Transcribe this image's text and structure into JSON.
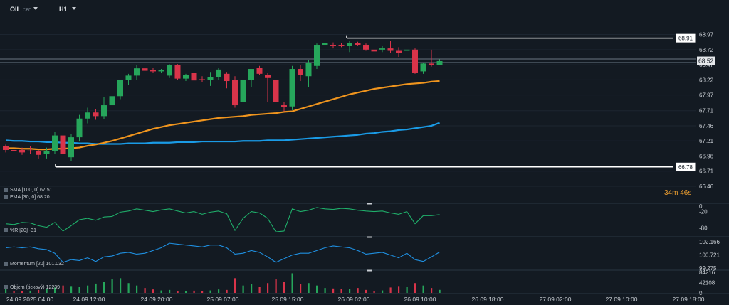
{
  "header": {
    "symbol": "OIL",
    "symbol_tag": "CFD",
    "timeframe": "H1"
  },
  "timer": {
    "minutes": "34",
    "m": "m",
    "seconds": "46",
    "s": "s"
  },
  "legends": {
    "sma": "SMA [100, 0] 67.51",
    "ema": "EMA [30, 0] 68.20",
    "wr": "%R [20] -31",
    "momentum": "Momentum [20] 101.032",
    "volume": "Objem (tickový) 12239"
  },
  "colors": {
    "background": "#131a22",
    "bull": "#26a65b",
    "bear": "#d9344a",
    "sma": "#1a9be6",
    "ema": "#f0951e",
    "line_white": "#ffffff",
    "indicator_green": "#1fae6a",
    "indicator_blue": "#1f8fe0"
  },
  "chart_data": [
    {
      "type": "candlestick",
      "title": "",
      "ylim": [
        66.46,
        69.1
      ],
      "y_ticks": [
        "68.97",
        "68.72",
        "68.47",
        "68.22",
        "67.97",
        "67.71",
        "67.46",
        "67.21",
        "66.96",
        "66.71",
        "66.46"
      ],
      "x_ticks": [
        "24.09.2025 04:00",
        "24.09 12:00",
        "24.09 20:00",
        "25.09 07:00",
        "25.09 15:00",
        "26.09 02:00",
        "26.09 10:00",
        "26.09 18:00",
        "27.09 02:00",
        "27.09 10:00",
        "27.09 18:00"
      ],
      "current_price_label": "68.52",
      "current_price": 68.535,
      "bid_line": 68.565,
      "horizontal_lines": [
        {
          "label": "68.91",
          "value": 68.91
        },
        {
          "label": "66.78",
          "value": 66.78
        }
      ],
      "candles": [
        {
          "o": 67.12,
          "h": 67.15,
          "l": 67.02,
          "c": 67.06
        },
        {
          "o": 67.06,
          "h": 67.1,
          "l": 67.0,
          "c": 67.04
        },
        {
          "o": 67.06,
          "h": 67.1,
          "l": 66.98,
          "c": 67.02
        },
        {
          "o": 67.05,
          "h": 67.12,
          "l": 67.0,
          "c": 67.04
        },
        {
          "o": 67.04,
          "h": 67.06,
          "l": 66.92,
          "c": 66.98
        },
        {
          "o": 66.99,
          "h": 67.1,
          "l": 66.92,
          "c": 67.04
        },
        {
          "o": 67.04,
          "h": 67.36,
          "l": 67.0,
          "c": 67.3
        },
        {
          "o": 67.3,
          "h": 67.34,
          "l": 66.8,
          "c": 67.0
        },
        {
          "o": 66.94,
          "h": 67.32,
          "l": 66.88,
          "c": 67.27
        },
        {
          "o": 67.27,
          "h": 67.64,
          "l": 67.2,
          "c": 67.58
        },
        {
          "o": 67.58,
          "h": 67.76,
          "l": 67.5,
          "c": 67.68
        },
        {
          "o": 67.68,
          "h": 67.74,
          "l": 67.56,
          "c": 67.62
        },
        {
          "o": 67.62,
          "h": 67.94,
          "l": 67.57,
          "c": 67.8
        },
        {
          "o": 67.8,
          "h": 67.95,
          "l": 67.5,
          "c": 67.95
        },
        {
          "o": 67.95,
          "h": 68.22,
          "l": 67.9,
          "c": 68.22
        },
        {
          "o": 68.22,
          "h": 68.32,
          "l": 68.14,
          "c": 68.29
        },
        {
          "o": 68.29,
          "h": 68.47,
          "l": 68.22,
          "c": 68.41
        },
        {
          "o": 68.41,
          "h": 68.5,
          "l": 68.35,
          "c": 68.37
        },
        {
          "o": 68.38,
          "h": 68.42,
          "l": 68.34,
          "c": 68.36
        },
        {
          "o": 68.36,
          "h": 68.4,
          "l": 68.33,
          "c": 68.38
        },
        {
          "o": 68.29,
          "h": 68.48,
          "l": 68.25,
          "c": 68.46
        },
        {
          "o": 68.46,
          "h": 68.48,
          "l": 68.22,
          "c": 68.24
        },
        {
          "o": 68.24,
          "h": 68.32,
          "l": 68.2,
          "c": 68.3
        },
        {
          "o": 68.33,
          "h": 68.35,
          "l": 68.2,
          "c": 68.21
        },
        {
          "o": 68.23,
          "h": 68.28,
          "l": 68.18,
          "c": 68.22
        },
        {
          "o": 68.22,
          "h": 68.35,
          "l": 68.12,
          "c": 68.26
        },
        {
          "o": 68.26,
          "h": 68.42,
          "l": 68.22,
          "c": 68.39
        },
        {
          "o": 68.32,
          "h": 68.35,
          "l": 68.08,
          "c": 68.2
        },
        {
          "o": 68.22,
          "h": 68.28,
          "l": 67.76,
          "c": 67.8
        },
        {
          "o": 67.85,
          "h": 68.25,
          "l": 67.8,
          "c": 68.22
        },
        {
          "o": 68.22,
          "h": 68.38,
          "l": 68.1,
          "c": 68.4
        },
        {
          "o": 68.42,
          "h": 68.45,
          "l": 68.3,
          "c": 68.32
        },
        {
          "o": 68.3,
          "h": 68.34,
          "l": 67.85,
          "c": 68.25
        },
        {
          "o": 68.22,
          "h": 68.28,
          "l": 67.78,
          "c": 67.85
        },
        {
          "o": 67.8,
          "h": 67.85,
          "l": 67.7,
          "c": 67.77
        },
        {
          "o": 67.78,
          "h": 68.45,
          "l": 67.72,
          "c": 68.4
        },
        {
          "o": 68.4,
          "h": 68.46,
          "l": 68.2,
          "c": 68.3
        },
        {
          "o": 68.28,
          "h": 68.55,
          "l": 68.1,
          "c": 68.5
        },
        {
          "o": 68.45,
          "h": 68.82,
          "l": 68.4,
          "c": 68.8
        },
        {
          "o": 68.8,
          "h": 68.84,
          "l": 68.72,
          "c": 68.83
        },
        {
          "o": 68.8,
          "h": 68.84,
          "l": 68.74,
          "c": 68.78
        },
        {
          "o": 68.8,
          "h": 68.83,
          "l": 68.76,
          "c": 68.78
        },
        {
          "o": 68.78,
          "h": 68.86,
          "l": 68.68,
          "c": 68.83
        },
        {
          "o": 68.83,
          "h": 68.85,
          "l": 68.79,
          "c": 68.8
        },
        {
          "o": 68.8,
          "h": 68.82,
          "l": 68.7,
          "c": 68.72
        },
        {
          "o": 68.72,
          "h": 68.76,
          "l": 68.66,
          "c": 68.69
        },
        {
          "o": 68.72,
          "h": 68.78,
          "l": 68.68,
          "c": 68.74
        },
        {
          "o": 68.74,
          "h": 68.86,
          "l": 68.66,
          "c": 68.7
        },
        {
          "o": 68.7,
          "h": 68.76,
          "l": 68.6,
          "c": 68.66
        },
        {
          "o": 68.7,
          "h": 68.75,
          "l": 68.62,
          "c": 68.72
        },
        {
          "o": 68.72,
          "h": 68.74,
          "l": 68.32,
          "c": 68.33
        },
        {
          "o": 68.36,
          "h": 68.5,
          "l": 68.32,
          "c": 68.49
        },
        {
          "o": 68.49,
          "h": 68.72,
          "l": 68.44,
          "c": 68.47
        },
        {
          "o": 68.47,
          "h": 68.56,
          "l": 68.46,
          "c": 68.53
        }
      ],
      "ema": [
        67.09,
        67.09,
        67.08,
        67.08,
        67.07,
        67.07,
        67.08,
        67.08,
        67.09,
        67.1,
        67.13,
        67.15,
        67.18,
        67.21,
        67.25,
        67.29,
        67.33,
        67.37,
        67.41,
        67.44,
        67.47,
        67.49,
        67.51,
        67.53,
        67.55,
        67.57,
        67.59,
        67.6,
        67.61,
        67.62,
        67.64,
        67.65,
        67.66,
        67.67,
        67.69,
        67.7,
        67.74,
        67.78,
        67.82,
        67.86,
        67.9,
        67.94,
        67.98,
        68.01,
        68.04,
        68.07,
        68.09,
        68.11,
        68.13,
        68.15,
        68.16,
        68.17,
        68.19,
        68.2
      ],
      "sma": [
        67.22,
        67.21,
        67.21,
        67.2,
        67.2,
        67.19,
        67.19,
        67.18,
        67.18,
        67.17,
        67.17,
        67.16,
        67.16,
        67.16,
        67.16,
        67.17,
        67.17,
        67.17,
        67.18,
        67.18,
        67.18,
        67.19,
        67.19,
        67.19,
        67.2,
        67.2,
        67.2,
        67.2,
        67.2,
        67.21,
        67.21,
        67.21,
        67.22,
        67.22,
        67.22,
        67.23,
        67.24,
        67.25,
        67.26,
        67.27,
        67.28,
        67.29,
        67.3,
        67.31,
        67.33,
        67.34,
        67.36,
        67.37,
        67.39,
        67.4,
        67.42,
        67.44,
        67.46,
        67.51
      ]
    },
    {
      "type": "line",
      "name": "%R [20]",
      "ylim": [
        -100,
        0
      ],
      "y_ticks": [
        "0",
        "-20",
        "-80"
      ],
      "values": [
        -65,
        -68,
        -60,
        -62,
        -72,
        -78,
        -60,
        -92,
        -72,
        -50,
        -45,
        -52,
        -40,
        -38,
        -22,
        -18,
        -10,
        -15,
        -20,
        -14,
        -10,
        -18,
        -25,
        -20,
        -30,
        -22,
        -18,
        -28,
        -90,
        -45,
        -20,
        -25,
        -45,
        -95,
        -92,
        -10,
        -20,
        -15,
        -5,
        -10,
        -12,
        -8,
        -10,
        -15,
        -18,
        -20,
        -18,
        -25,
        -30,
        -20,
        -65,
        -35,
        -35,
        -31
      ]
    },
    {
      "type": "line",
      "name": "Momentum [20]",
      "ylim": [
        99.275,
        102.166
      ],
      "y_ticks": [
        "102.166",
        "100.721",
        "99.275"
      ],
      "values": [
        101.5,
        101.6,
        101.5,
        101.6,
        101.4,
        101.3,
        100.9,
        99.9,
        100.2,
        100.1,
        100.4,
        100.0,
        100.5,
        100.6,
        100.9,
        101.0,
        100.8,
        100.9,
        101.2,
        101.5,
        102.0,
        101.9,
        101.8,
        101.7,
        101.6,
        101.8,
        101.8,
        101.5,
        100.8,
        100.9,
        101.2,
        101.0,
        100.5,
        99.9,
        100.3,
        100.7,
        100.9,
        100.9,
        101.2,
        101.5,
        101.7,
        101.6,
        101.5,
        101.2,
        100.8,
        100.9,
        101.0,
        100.7,
        100.4,
        100.9,
        100.2,
        100.0,
        100.5,
        101.032
      ]
    },
    {
      "type": "bar",
      "name": "Objem (tickový)",
      "ylim": [
        0,
        84216
      ],
      "y_ticks": [
        "84216",
        "42108",
        "0"
      ],
      "values": [
        18000,
        8000,
        6000,
        9000,
        12000,
        15000,
        22000,
        30000,
        28000,
        24000,
        30000,
        38000,
        45000,
        55000,
        60000,
        40000,
        30000,
        20000,
        14000,
        10000,
        12000,
        8000,
        7000,
        9000,
        6000,
        10000,
        14000,
        12000,
        60000,
        30000,
        35000,
        25000,
        40000,
        55000,
        45000,
        80000,
        35000,
        40000,
        30000,
        20000,
        18000,
        15000,
        16000,
        20000,
        12000,
        8000,
        10000,
        22000,
        28000,
        24000,
        40000,
        30000,
        20000,
        12239
      ],
      "up": [
        1,
        0,
        0,
        1,
        0,
        1,
        1,
        0,
        1,
        1,
        1,
        1,
        1,
        1,
        1,
        1,
        1,
        0,
        0,
        1,
        1,
        0,
        1,
        0,
        0,
        1,
        1,
        0,
        0,
        1,
        1,
        0,
        0,
        0,
        0,
        1,
        0,
        1,
        1,
        1,
        0,
        0,
        1,
        0,
        0,
        0,
        1,
        0,
        0,
        1,
        0,
        1,
        0,
        1
      ]
    }
  ]
}
